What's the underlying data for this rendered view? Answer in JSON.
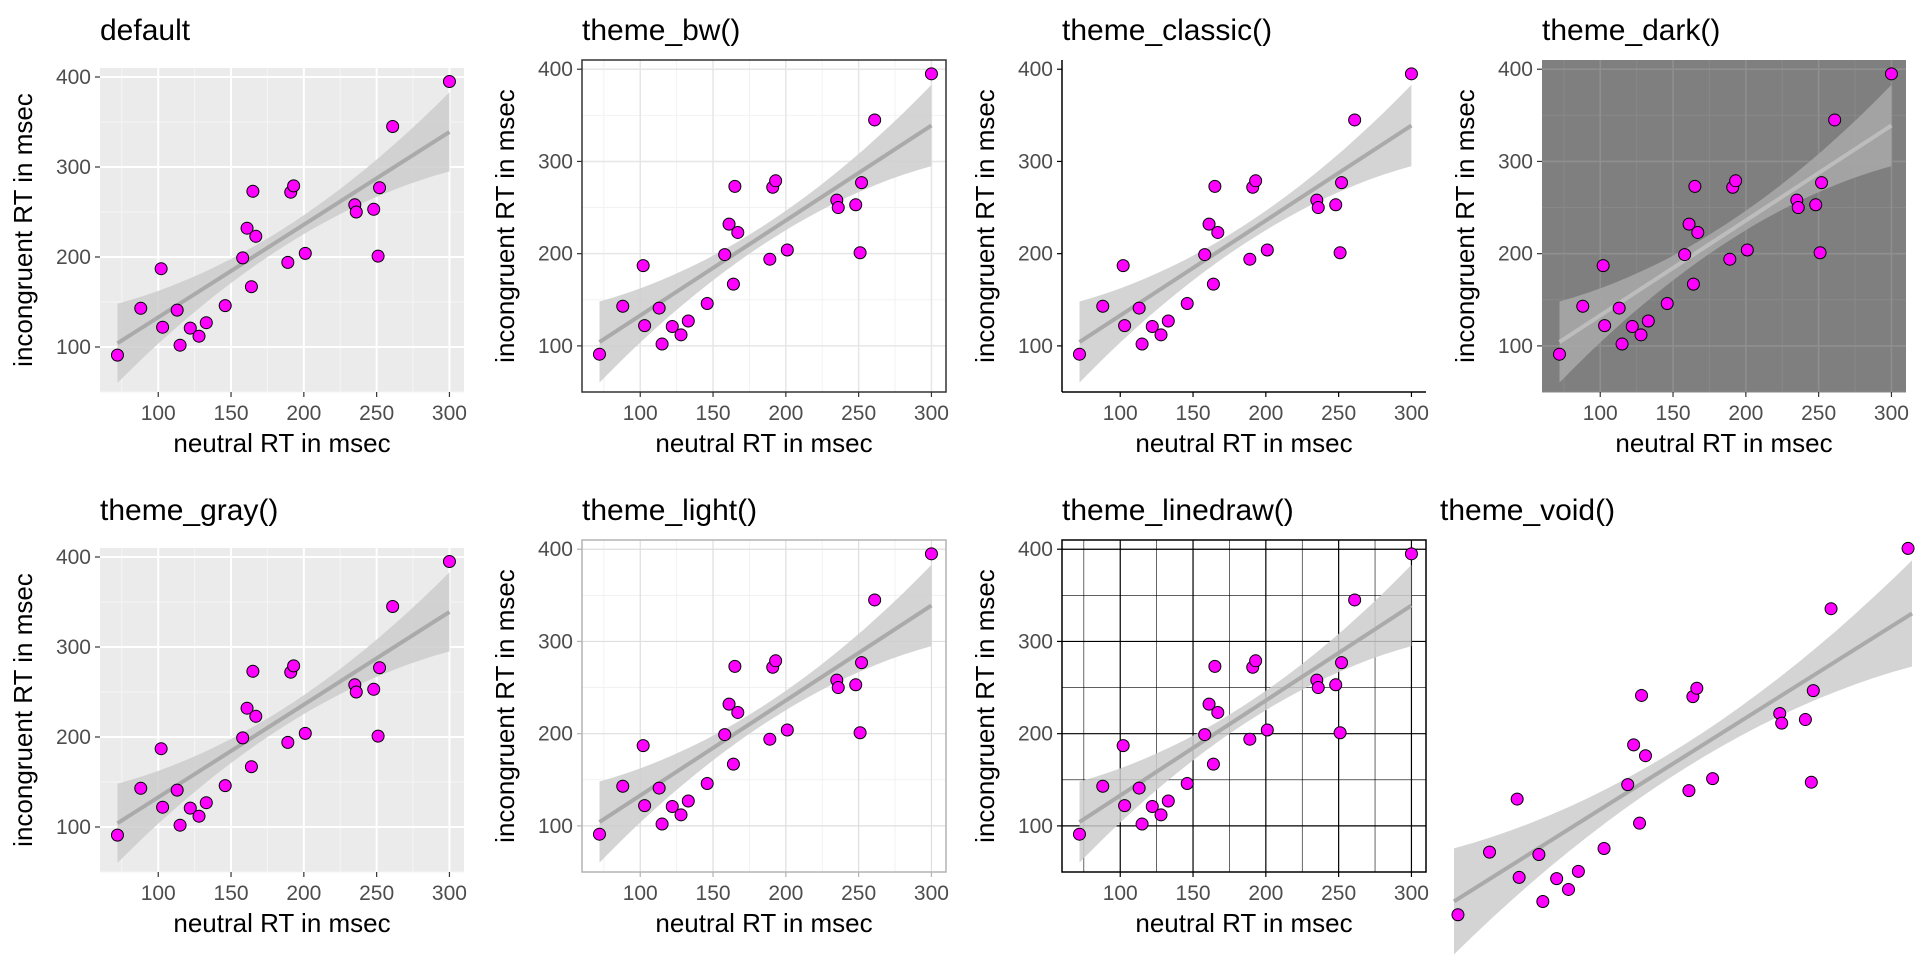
{
  "chart_data": [
    {
      "type": "scatter",
      "theme": "default",
      "title": "default",
      "xlabel": "neutral RT in msec",
      "ylabel": "incongruent RT in msec",
      "xlim": [
        60,
        310
      ],
      "ylim": [
        50,
        410
      ],
      "xticks": [
        100,
        150,
        200,
        250,
        300
      ],
      "yticks": [
        100,
        200,
        300,
        400
      ],
      "point_color": "#ff00ff",
      "fit_line_color": "#aaaaaa",
      "ribbon_color": "#cccccc",
      "fit": {
        "intercept": 30,
        "slope": 1.03,
        "ci_end": 44,
        "ci_mid": 10
      },
      "x": [
        72,
        88,
        102,
        103,
        113,
        115,
        122,
        128,
        133,
        146,
        158,
        161,
        164,
        165,
        167,
        189,
        191,
        193,
        201,
        235,
        236,
        248,
        251,
        252,
        261,
        300
      ],
      "y": [
        91,
        143,
        187,
        122,
        141,
        102,
        121,
        112,
        127,
        146,
        199,
        232,
        167,
        273,
        223,
        194,
        272,
        279,
        204,
        258,
        250,
        253,
        201,
        277,
        345,
        395
      ]
    },
    {
      "type": "scatter",
      "theme": "bw",
      "title": "theme_bw()",
      "xlabel": "neutral RT in msec",
      "ylabel": "incongruent RT in msec",
      "xlim": [
        60,
        310
      ],
      "ylim": [
        50,
        410
      ],
      "xticks": [
        100,
        150,
        200,
        250,
        300
      ],
      "yticks": [
        100,
        200,
        300,
        400
      ],
      "point_color": "#ff00ff",
      "fit_line_color": "#aaaaaa",
      "ribbon_color": "#cccccc",
      "fit": {
        "intercept": 30,
        "slope": 1.03,
        "ci_end": 44,
        "ci_mid": 10
      },
      "x": [
        72,
        88,
        102,
        103,
        113,
        115,
        122,
        128,
        133,
        146,
        158,
        161,
        164,
        165,
        167,
        189,
        191,
        193,
        201,
        235,
        236,
        248,
        251,
        252,
        261,
        300
      ],
      "y": [
        91,
        143,
        187,
        122,
        141,
        102,
        121,
        112,
        127,
        146,
        199,
        232,
        167,
        273,
        223,
        194,
        272,
        279,
        204,
        258,
        250,
        253,
        201,
        277,
        345,
        395
      ]
    },
    {
      "type": "scatter",
      "theme": "classic",
      "title": "theme_classic()",
      "xlabel": "neutral RT in msec",
      "ylabel": "incongruent RT in msec",
      "xlim": [
        60,
        310
      ],
      "ylim": [
        50,
        410
      ],
      "xticks": [
        100,
        150,
        200,
        250,
        300
      ],
      "yticks": [
        100,
        200,
        300,
        400
      ],
      "point_color": "#ff00ff",
      "fit_line_color": "#aaaaaa",
      "ribbon_color": "#cccccc",
      "fit": {
        "intercept": 30,
        "slope": 1.03,
        "ci_end": 44,
        "ci_mid": 10
      },
      "x": [
        72,
        88,
        102,
        103,
        113,
        115,
        122,
        128,
        133,
        146,
        158,
        161,
        164,
        165,
        167,
        189,
        191,
        193,
        201,
        235,
        236,
        248,
        251,
        252,
        261,
        300
      ],
      "y": [
        91,
        143,
        187,
        122,
        141,
        102,
        121,
        112,
        127,
        146,
        199,
        232,
        167,
        273,
        223,
        194,
        272,
        279,
        204,
        258,
        250,
        253,
        201,
        277,
        345,
        395
      ]
    },
    {
      "type": "scatter",
      "theme": "dark",
      "title": "theme_dark()",
      "xlabel": "neutral RT in msec",
      "ylabel": "incongruent RT in msec",
      "xlim": [
        60,
        310
      ],
      "ylim": [
        50,
        410
      ],
      "xticks": [
        100,
        150,
        200,
        250,
        300
      ],
      "yticks": [
        100,
        200,
        300,
        400
      ],
      "point_color": "#ff00ff",
      "fit_line_color": "#bdbdbd",
      "ribbon_color": "#a9a9a9",
      "fit": {
        "intercept": 30,
        "slope": 1.03,
        "ci_end": 44,
        "ci_mid": 10
      },
      "x": [
        72,
        88,
        102,
        103,
        113,
        115,
        122,
        128,
        133,
        146,
        158,
        161,
        164,
        165,
        167,
        189,
        191,
        193,
        201,
        235,
        236,
        248,
        251,
        252,
        261,
        300
      ],
      "y": [
        91,
        143,
        187,
        122,
        141,
        102,
        121,
        112,
        127,
        146,
        199,
        232,
        167,
        273,
        223,
        194,
        272,
        279,
        204,
        258,
        250,
        253,
        201,
        277,
        345,
        395
      ]
    },
    {
      "type": "scatter",
      "theme": "gray",
      "title": "theme_gray()",
      "xlabel": "neutral RT in msec",
      "ylabel": "incongruent RT in msec",
      "xlim": [
        60,
        310
      ],
      "ylim": [
        50,
        410
      ],
      "xticks": [
        100,
        150,
        200,
        250,
        300
      ],
      "yticks": [
        100,
        200,
        300,
        400
      ],
      "point_color": "#ff00ff",
      "fit_line_color": "#aaaaaa",
      "ribbon_color": "#cccccc",
      "fit": {
        "intercept": 30,
        "slope": 1.03,
        "ci_end": 44,
        "ci_mid": 10
      },
      "x": [
        72,
        88,
        102,
        103,
        113,
        115,
        122,
        128,
        133,
        146,
        158,
        161,
        164,
        165,
        167,
        189,
        191,
        193,
        201,
        235,
        236,
        248,
        251,
        252,
        261,
        300
      ],
      "y": [
        91,
        143,
        187,
        122,
        141,
        102,
        121,
        112,
        127,
        146,
        199,
        232,
        167,
        273,
        223,
        194,
        272,
        279,
        204,
        258,
        250,
        253,
        201,
        277,
        345,
        395
      ]
    },
    {
      "type": "scatter",
      "theme": "light",
      "title": "theme_light()",
      "xlabel": "neutral RT in msec",
      "ylabel": "incongruent RT in msec",
      "xlim": [
        60,
        310
      ],
      "ylim": [
        50,
        410
      ],
      "xticks": [
        100,
        150,
        200,
        250,
        300
      ],
      "yticks": [
        100,
        200,
        300,
        400
      ],
      "point_color": "#ff00ff",
      "fit_line_color": "#aaaaaa",
      "ribbon_color": "#cccccc",
      "fit": {
        "intercept": 30,
        "slope": 1.03,
        "ci_end": 44,
        "ci_mid": 10
      },
      "x": [
        72,
        88,
        102,
        103,
        113,
        115,
        122,
        128,
        133,
        146,
        158,
        161,
        164,
        165,
        167,
        189,
        191,
        193,
        201,
        235,
        236,
        248,
        251,
        252,
        261,
        300
      ],
      "y": [
        91,
        143,
        187,
        122,
        141,
        102,
        121,
        112,
        127,
        146,
        199,
        232,
        167,
        273,
        223,
        194,
        272,
        279,
        204,
        258,
        250,
        253,
        201,
        277,
        345,
        395
      ]
    },
    {
      "type": "scatter",
      "theme": "linedraw",
      "title": "theme_linedraw()",
      "xlabel": "neutral RT in msec",
      "ylabel": "incongruent RT in msec",
      "xlim": [
        60,
        310
      ],
      "ylim": [
        50,
        410
      ],
      "xticks": [
        100,
        150,
        200,
        250,
        300
      ],
      "yticks": [
        100,
        200,
        300,
        400
      ],
      "point_color": "#ff00ff",
      "fit_line_color": "#aaaaaa",
      "ribbon_color": "#cccccc",
      "fit": {
        "intercept": 30,
        "slope": 1.03,
        "ci_end": 44,
        "ci_mid": 10
      },
      "x": [
        72,
        88,
        102,
        103,
        113,
        115,
        122,
        128,
        133,
        146,
        158,
        161,
        164,
        165,
        167,
        189,
        191,
        193,
        201,
        235,
        236,
        248,
        251,
        252,
        261,
        300
      ],
      "y": [
        91,
        143,
        187,
        122,
        141,
        102,
        121,
        112,
        127,
        146,
        199,
        232,
        167,
        273,
        223,
        194,
        272,
        279,
        204,
        258,
        250,
        253,
        201,
        277,
        345,
        395
      ]
    },
    {
      "type": "scatter",
      "theme": "void",
      "title": "theme_void()",
      "xlabel": "",
      "ylabel": "",
      "xlim": [
        70,
        302
      ],
      "ylim": [
        85,
        402
      ],
      "xticks": [],
      "yticks": [],
      "point_color": "#ff00ff",
      "fit_line_color": "#aaaaaa",
      "ribbon_color": "#cccccc",
      "fit": {
        "intercept": 30,
        "slope": 1.03,
        "ci_end": 44,
        "ci_mid": 10
      },
      "x": [
        72,
        88,
        102,
        103,
        113,
        115,
        122,
        128,
        133,
        146,
        158,
        161,
        164,
        165,
        167,
        189,
        191,
        193,
        201,
        235,
        236,
        248,
        251,
        252,
        261,
        300
      ],
      "y": [
        91,
        143,
        187,
        122,
        141,
        102,
        121,
        112,
        127,
        146,
        199,
        232,
        167,
        273,
        223,
        194,
        272,
        279,
        204,
        258,
        250,
        253,
        201,
        277,
        345,
        395
      ]
    }
  ]
}
